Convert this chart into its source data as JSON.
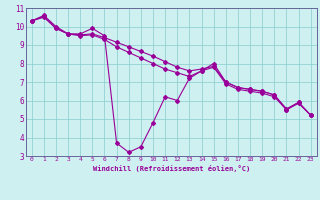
{
  "background_color": "#cff0f0",
  "line_color": "#990099",
  "xlim": [
    -0.5,
    23.5
  ],
  "ylim": [
    3,
    11
  ],
  "yticks": [
    3,
    4,
    5,
    6,
    7,
    8,
    9,
    10,
    11
  ],
  "xticks": [
    0,
    1,
    2,
    3,
    4,
    5,
    6,
    7,
    8,
    9,
    10,
    11,
    12,
    13,
    14,
    15,
    16,
    17,
    18,
    19,
    20,
    21,
    22,
    23
  ],
  "xlabel": "Windchill (Refroidissement éolien,°C)",
  "series1": [
    [
      0,
      10.3
    ],
    [
      1,
      10.6
    ],
    [
      2,
      10.0
    ],
    [
      3,
      9.6
    ],
    [
      4,
      9.6
    ],
    [
      5,
      9.9
    ],
    [
      6,
      9.5
    ],
    [
      7,
      3.7
    ],
    [
      8,
      3.2
    ],
    [
      9,
      3.5
    ],
    [
      10,
      4.8
    ],
    [
      11,
      6.2
    ],
    [
      12,
      6.0
    ],
    [
      13,
      7.2
    ],
    [
      14,
      7.6
    ],
    [
      15,
      8.0
    ],
    [
      16,
      7.0
    ],
    [
      17,
      6.7
    ],
    [
      18,
      6.6
    ],
    [
      19,
      6.5
    ],
    [
      20,
      6.3
    ],
    [
      21,
      5.5
    ],
    [
      22,
      5.9
    ],
    [
      23,
      5.2
    ]
  ],
  "series2": [
    [
      0,
      10.3
    ],
    [
      1,
      10.55
    ],
    [
      2,
      9.9
    ],
    [
      3,
      9.6
    ],
    [
      4,
      9.55
    ],
    [
      5,
      9.6
    ],
    [
      6,
      9.4
    ],
    [
      7,
      9.15
    ],
    [
      8,
      8.9
    ],
    [
      9,
      8.65
    ],
    [
      10,
      8.4
    ],
    [
      11,
      8.1
    ],
    [
      12,
      7.8
    ],
    [
      13,
      7.6
    ],
    [
      14,
      7.7
    ],
    [
      15,
      7.85
    ],
    [
      16,
      7.0
    ],
    [
      17,
      6.7
    ],
    [
      18,
      6.6
    ],
    [
      19,
      6.5
    ],
    [
      20,
      6.3
    ],
    [
      21,
      5.55
    ],
    [
      22,
      5.9
    ],
    [
      23,
      5.2
    ]
  ],
  "series3": [
    [
      0,
      10.3
    ],
    [
      1,
      10.5
    ],
    [
      2,
      9.9
    ],
    [
      3,
      9.6
    ],
    [
      4,
      9.5
    ],
    [
      5,
      9.55
    ],
    [
      6,
      9.3
    ],
    [
      7,
      8.9
    ],
    [
      8,
      8.6
    ],
    [
      9,
      8.3
    ],
    [
      10,
      8.0
    ],
    [
      11,
      7.7
    ],
    [
      12,
      7.5
    ],
    [
      13,
      7.3
    ],
    [
      14,
      7.6
    ],
    [
      15,
      7.8
    ],
    [
      16,
      6.9
    ],
    [
      17,
      6.6
    ],
    [
      18,
      6.5
    ],
    [
      19,
      6.4
    ],
    [
      20,
      6.2
    ],
    [
      21,
      5.5
    ],
    [
      22,
      5.85
    ],
    [
      23,
      5.2
    ]
  ]
}
